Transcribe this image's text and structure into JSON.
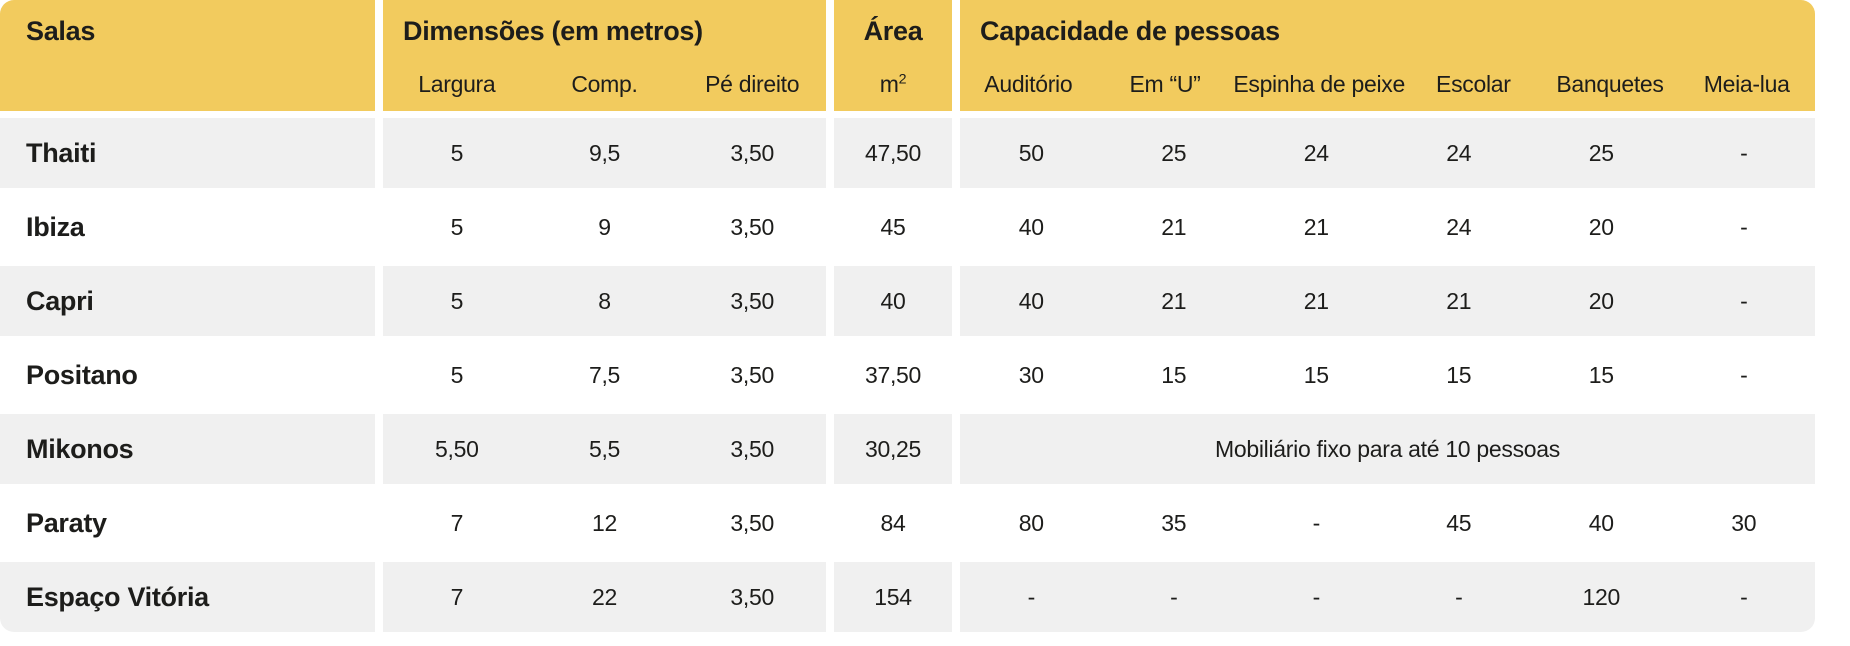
{
  "colors": {
    "header_bg": "#F2CB5E",
    "row_alt_bg": "#F0F0F0",
    "row_bg": "#FFFFFF",
    "text": "#1D1D1B"
  },
  "header": {
    "salas": "Salas",
    "dimensions": {
      "label": "Dimensões (em metros)",
      "subs": [
        "Largura",
        "Comp.",
        "Pé direito"
      ]
    },
    "area": {
      "label": "Área",
      "sub": "m²"
    },
    "capacity": {
      "label": "Capacidade de pessoas",
      "subs": [
        "Auditório",
        "Em “U”",
        "Espinha de peixe",
        "Escolar",
        "Banquetes",
        "Meia-lua"
      ]
    }
  },
  "rows": [
    {
      "name": "Thaiti",
      "dims": [
        "5",
        "9,5",
        "3,50"
      ],
      "area": "47,50",
      "capacity": [
        "50",
        "25",
        "24",
        "24",
        "25",
        "-"
      ]
    },
    {
      "name": "Ibiza",
      "dims": [
        "5",
        "9",
        "3,50"
      ],
      "area": "45",
      "capacity": [
        "40",
        "21",
        "21",
        "24",
        "20",
        "-"
      ]
    },
    {
      "name": "Capri",
      "dims": [
        "5",
        "8",
        "3,50"
      ],
      "area": "40",
      "capacity": [
        "40",
        "21",
        "21",
        "21",
        "20",
        "-"
      ]
    },
    {
      "name": "Positano",
      "dims": [
        "5",
        "7,5",
        "3,50"
      ],
      "area": "37,50",
      "capacity": [
        "30",
        "15",
        "15",
        "15",
        "15",
        "-"
      ]
    },
    {
      "name": "Mikonos",
      "dims": [
        "5,50",
        "5,5",
        "3,50"
      ],
      "area": "30,25",
      "capacity_note": "Mobiliário fixo para até 10 pessoas"
    },
    {
      "name": "Paraty",
      "dims": [
        "7",
        "12",
        "3,50"
      ],
      "area": "84",
      "capacity": [
        "80",
        "35",
        "-",
        "45",
        "40",
        "30"
      ]
    },
    {
      "name": "Espaço Vitória",
      "dims": [
        "7",
        "22",
        "3,50"
      ],
      "area": "154",
      "capacity": [
        "-",
        "-",
        "-",
        "-",
        "120",
        "-"
      ]
    }
  ]
}
